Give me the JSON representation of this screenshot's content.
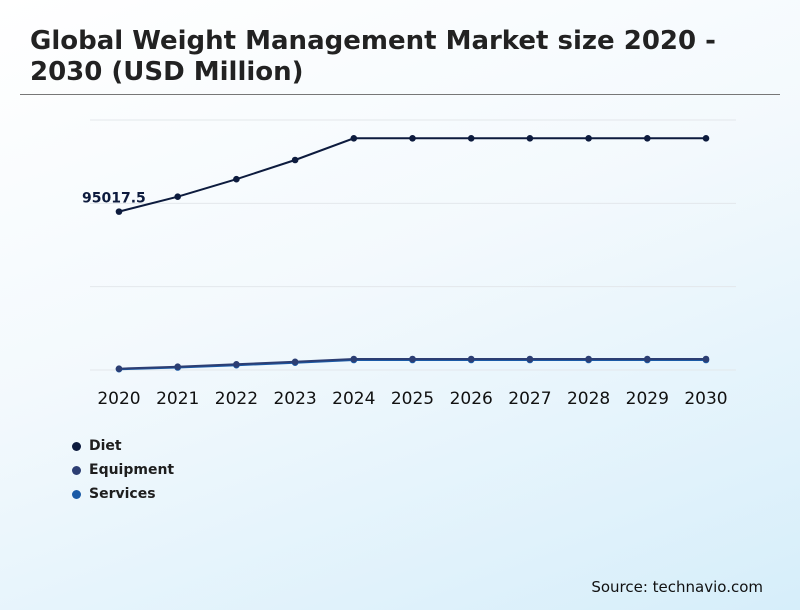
{
  "chart_data": {
    "type": "line",
    "title": "Global Weight Management Market size 2020 - 2030 (USD Million)",
    "x": [
      "2020",
      "2021",
      "2022",
      "2023",
      "2024",
      "2025",
      "2026",
      "2027",
      "2028",
      "2029",
      "2030"
    ],
    "ylim": [
      0,
      150000
    ],
    "grid": true,
    "legend_position": "bottom-left",
    "series": [
      {
        "name": "Diet",
        "color": "#0d1b3e",
        "values": [
          95017.5,
          104000,
          114500,
          126000,
          139000,
          139000,
          139000,
          139000,
          139000,
          139000,
          139000
        ]
      },
      {
        "name": "Equipment",
        "color": "#2c3e73",
        "values": [
          800,
          2000,
          3400,
          4900,
          6600,
          6600,
          6600,
          6600,
          6600,
          6600,
          6600
        ]
      },
      {
        "name": "Services",
        "color": "#1a5aa6",
        "values": [
          500,
          1500,
          2900,
          4400,
          6000,
          6000,
          6000,
          6000,
          6000,
          6000,
          6000
        ]
      }
    ],
    "annotation": {
      "series": 0,
      "index": 0,
      "text": "95017.5"
    }
  },
  "source": "Source: technavio.com"
}
